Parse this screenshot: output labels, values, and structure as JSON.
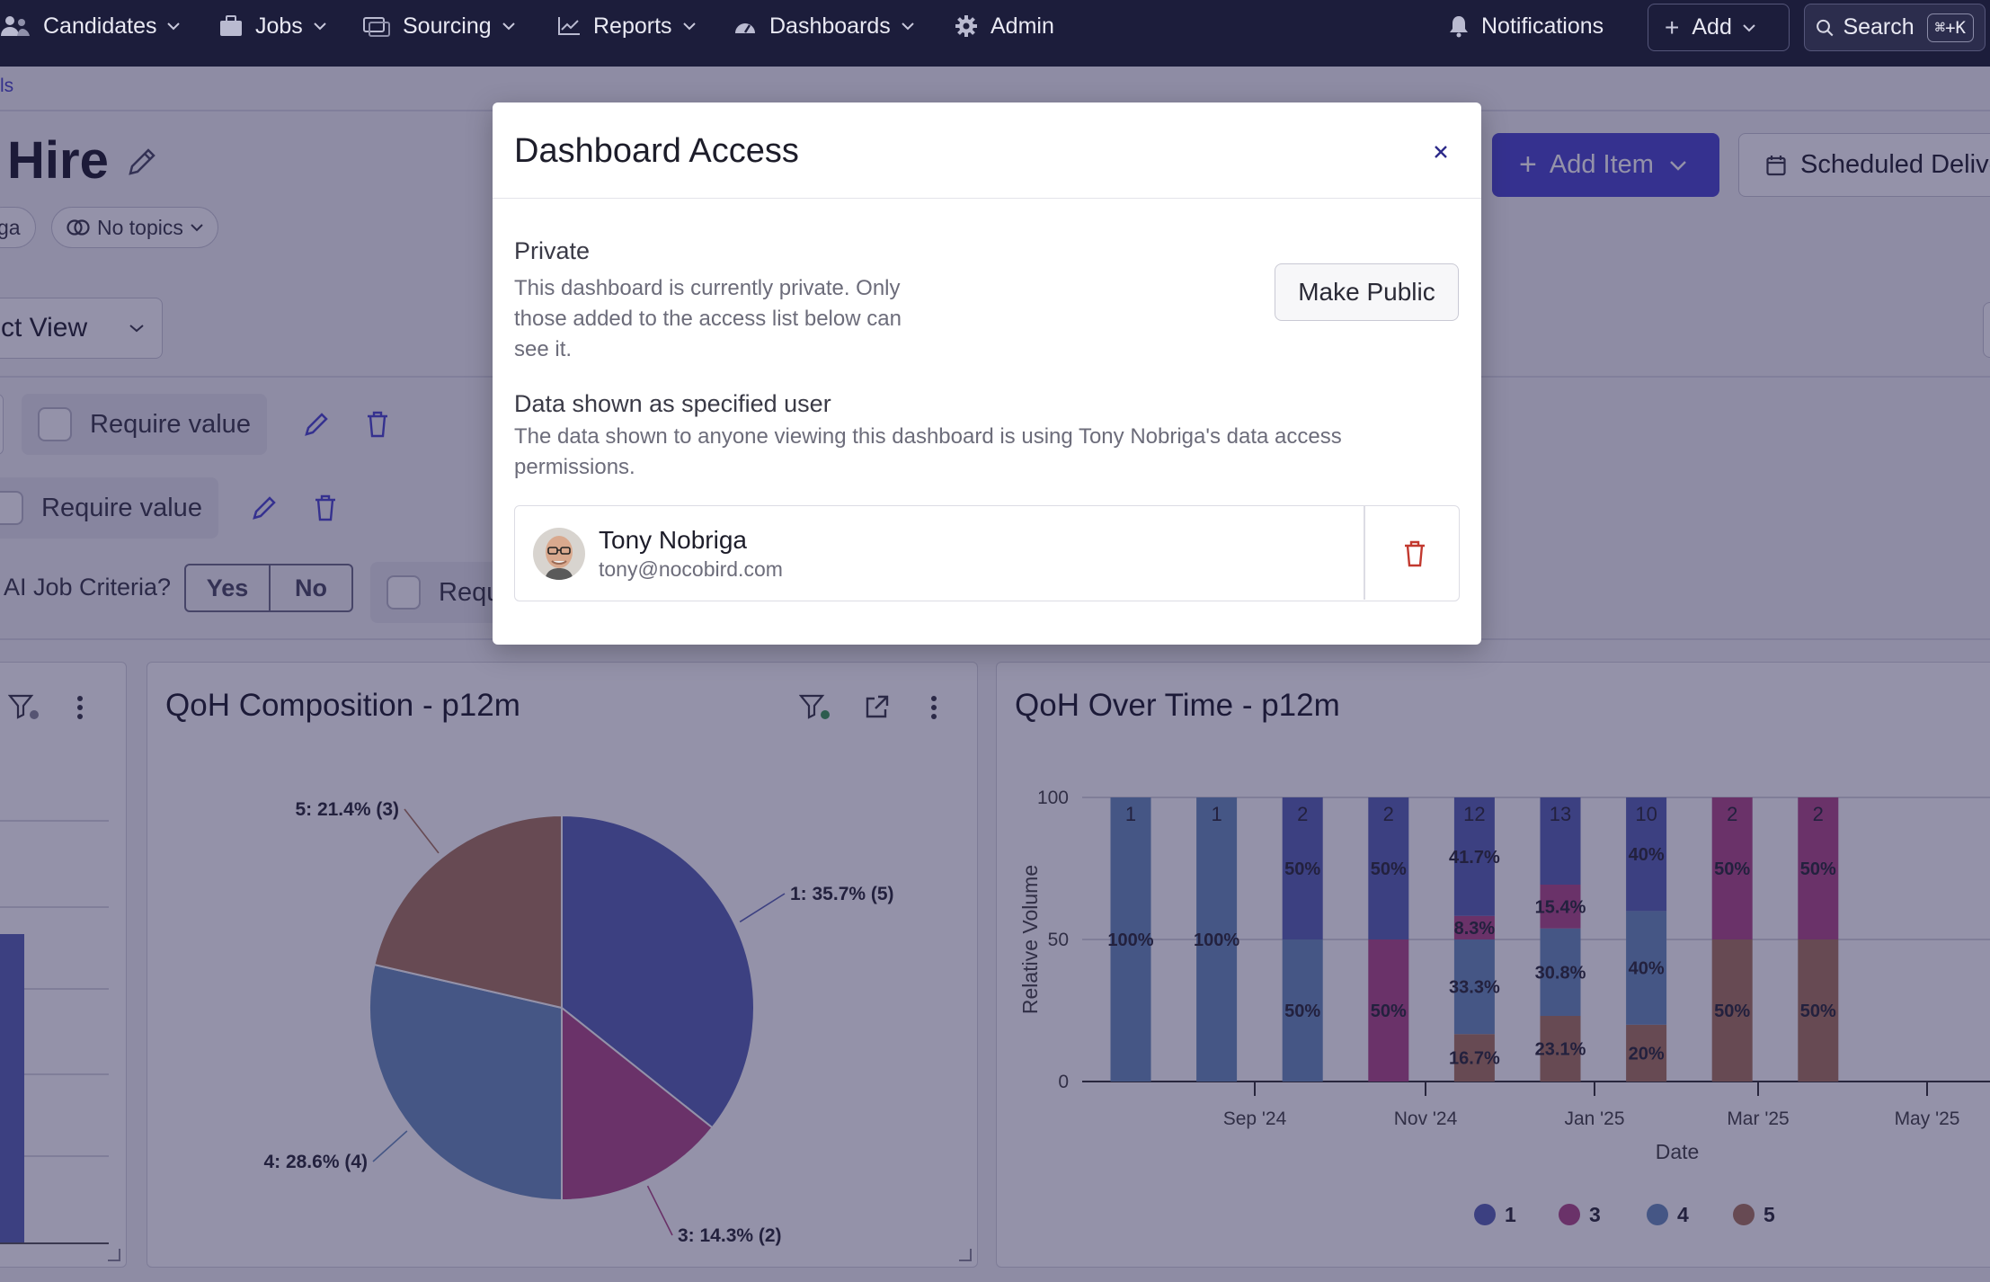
{
  "nav": {
    "items": [
      {
        "label": "Candidates",
        "icon": "people-icon"
      },
      {
        "label": "Jobs",
        "icon": "briefcase-icon"
      },
      {
        "label": "Sourcing",
        "icon": "sourcing-icon"
      },
      {
        "label": "Reports",
        "icon": "chart-line-icon"
      },
      {
        "label": "Dashboards",
        "icon": "gauge-icon"
      },
      {
        "label": "Admin",
        "icon": "gear-icon"
      }
    ],
    "notifications": "Notifications",
    "add": "Add",
    "search": "Search",
    "search_shortcut": "⌘+K"
  },
  "page": {
    "breadcrumb": "ls",
    "title": "Hire",
    "chip_left": "ga",
    "chip_topics": "No topics",
    "view_select": "ct View",
    "add_item": "Add Item",
    "scheduled": "Scheduled Delive",
    "require_value": "Require value",
    "ai_criteria_label": "AI Job Criteria?",
    "yes": "Yes",
    "no": "No",
    "require_partial": "Requ"
  },
  "cards": {
    "composition_title": "QoH Composition - p12m",
    "over_time_title": "QoH Over Time - p12m"
  },
  "modal": {
    "title": "Dashboard Access",
    "private_label": "Private",
    "private_desc_lines": [
      "This dashboard is currently private. Only",
      "those added to the access list below can",
      "see it."
    ],
    "make_public": "Make Public",
    "data_user_label": "Data shown as specified user",
    "data_user_desc_lines": [
      "The data shown to anyone viewing this dashboard is using Tony Nobriga's data access",
      "permissions."
    ],
    "user_name": "Tony Nobriga",
    "user_email": "tony@nocobird.com"
  },
  "colors": {
    "s1": "#5a64b4",
    "s3": "#b04a86",
    "s4": "#6a8fbc",
    "s5": "#aa775e"
  },
  "chart_data": [
    {
      "type": "pie",
      "title": "QoH Composition - p12m",
      "slices": [
        {
          "label": "1: 35.7% (5)",
          "name": "1",
          "percent": 35.7,
          "count": 5
        },
        {
          "label": "3: 14.3% (2)",
          "name": "3",
          "percent": 14.3,
          "count": 2
        },
        {
          "label": "4: 28.6% (4)",
          "name": "4",
          "percent": 28.6,
          "count": 4
        },
        {
          "label": "5: 21.4% (3)",
          "name": "5",
          "percent": 21.4,
          "count": 3
        }
      ]
    },
    {
      "type": "bar",
      "stacked": true,
      "title": "QoH Over Time - p12m",
      "xlabel": "Date",
      "ylabel": "Relative Volume",
      "ylim": [
        0,
        100
      ],
      "yticks": [
        "0",
        "50",
        "100"
      ],
      "xticks": [
        "Sep '24",
        "Nov '24",
        "Jan '25",
        "Mar '25",
        "May '25"
      ],
      "legend": [
        "1",
        "3",
        "4",
        "5"
      ],
      "bars": [
        {
          "total": "1",
          "segments": [
            {
              "series": "4",
              "value": 100,
              "label": "100%"
            }
          ]
        },
        {
          "total": "1",
          "segments": [
            {
              "series": "4",
              "value": 100,
              "label": "100%"
            }
          ]
        },
        {
          "total": "2",
          "segments": [
            {
              "series": "4",
              "value": 50,
              "label": "50%"
            },
            {
              "series": "1",
              "value": 50,
              "label": "50%"
            }
          ]
        },
        {
          "total": "2",
          "segments": [
            {
              "series": "3",
              "value": 50,
              "label": "50%"
            },
            {
              "series": "1",
              "value": 50,
              "label": "50%"
            }
          ]
        },
        {
          "total": "12",
          "segments": [
            {
              "series": "5",
              "value": 16.7,
              "label": "16.7%"
            },
            {
              "series": "4",
              "value": 33.3,
              "label": "33.3%"
            },
            {
              "series": "3",
              "value": 8.3,
              "label": "8.3%"
            },
            {
              "series": "1",
              "value": 41.7,
              "label": "41.7%"
            }
          ]
        },
        {
          "total": "13",
          "segments": [
            {
              "series": "5",
              "value": 23.1,
              "label": "23.1%"
            },
            {
              "series": "4",
              "value": 30.8,
              "label": "30.8%"
            },
            {
              "series": "3",
              "value": 15.4,
              "label": "15.4%"
            },
            {
              "series": "1",
              "value": 30.7,
              "label": ""
            }
          ]
        },
        {
          "total": "10",
          "segments": [
            {
              "series": "5",
              "value": 20,
              "label": "20%"
            },
            {
              "series": "4",
              "value": 40,
              "label": "40%"
            },
            {
              "series": "1",
              "value": 40,
              "label": "40%"
            }
          ]
        },
        {
          "total": "2",
          "segments": [
            {
              "series": "5",
              "value": 50,
              "label": "50%"
            },
            {
              "series": "3",
              "value": 50,
              "label": "50%"
            }
          ]
        },
        {
          "total": "2",
          "segments": [
            {
              "series": "5",
              "value": 50,
              "label": "50%"
            },
            {
              "series": "3",
              "value": 50,
              "label": "50%"
            }
          ]
        }
      ]
    }
  ]
}
